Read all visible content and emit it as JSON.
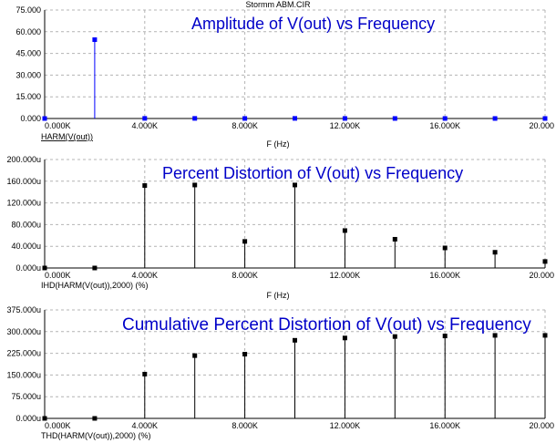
{
  "window_title": "Stormm ABM.CIR",
  "colors": {
    "axis": "#000000",
    "grid": "#b4b4b4",
    "title_text": "#0000c8",
    "series_plot1": "#0000ff",
    "series_plot2": "#000000",
    "series_plot3": "#000000"
  },
  "chart_data": [
    {
      "type": "scatter",
      "style": "stem",
      "overlay_title": "Amplitude of V(out) vs Frequency",
      "x_tick_labels": [
        "0.000K",
        "4.000K",
        "8.000K",
        "12.000K",
        "16.000K",
        "20.000"
      ],
      "y_tick_labels": [
        "0.000",
        "15.000",
        "30.000",
        "45.000",
        "60.000",
        "75.000"
      ],
      "xlabel": "F (Hz)",
      "trace_label": "HARM(V(out))",
      "trace_label_underlined": true,
      "xlim": [
        0,
        20000
      ],
      "ylim": [
        0,
        75
      ],
      "grid": true,
      "x": [
        0,
        2000,
        4000,
        6000,
        8000,
        10000,
        12000,
        14000,
        16000,
        18000,
        20000
      ],
      "values": [
        0,
        54.5,
        0.08,
        0.08,
        0.03,
        0.08,
        0.04,
        0.03,
        0.02,
        0.02,
        0.01
      ]
    },
    {
      "type": "scatter",
      "style": "stem",
      "overlay_title": "Percent Distortion of V(out) vs Frequency",
      "x_tick_labels": [
        "0.000K",
        "4.000K",
        "8.000K",
        "12.000K",
        "16.000K",
        "20.000"
      ],
      "y_tick_labels": [
        "0.000u",
        "40.000u",
        "80.000u",
        "120.000u",
        "160.000u",
        "200.000u"
      ],
      "xlabel": "F (Hz)",
      "trace_label": "IHD(HARM(V(out)),2000) (%)",
      "trace_label_underlined": false,
      "xlim": [
        0,
        20000
      ],
      "ylim": [
        0,
        200
      ],
      "grid": true,
      "x": [
        0,
        2000,
        4000,
        6000,
        8000,
        10000,
        12000,
        14000,
        16000,
        18000,
        20000
      ],
      "values": [
        0,
        0,
        152,
        153,
        49,
        153,
        69,
        53,
        37,
        29,
        12
      ]
    },
    {
      "type": "scatter",
      "style": "stem",
      "overlay_title": "Cumulative Percent Distortion of V(out) vs Frequency",
      "x_tick_labels": [
        "0.000K",
        "4.000K",
        "8.000K",
        "12.000K",
        "16.000K",
        "20.000"
      ],
      "y_tick_labels": [
        "0.000u",
        "75.000u",
        "150.000u",
        "225.000u",
        "300.000u",
        "375.000u"
      ],
      "xlabel": "",
      "trace_label": "THD(HARM(V(out)),2000) (%)",
      "trace_label_underlined": false,
      "xlim": [
        0,
        20000
      ],
      "ylim": [
        0,
        375
      ],
      "grid": true,
      "x": [
        0,
        2000,
        4000,
        6000,
        8000,
        10000,
        12000,
        14000,
        16000,
        18000,
        20000
      ],
      "values": [
        0,
        0,
        153,
        217,
        222,
        270,
        278,
        283,
        285,
        287,
        287
      ]
    }
  ]
}
